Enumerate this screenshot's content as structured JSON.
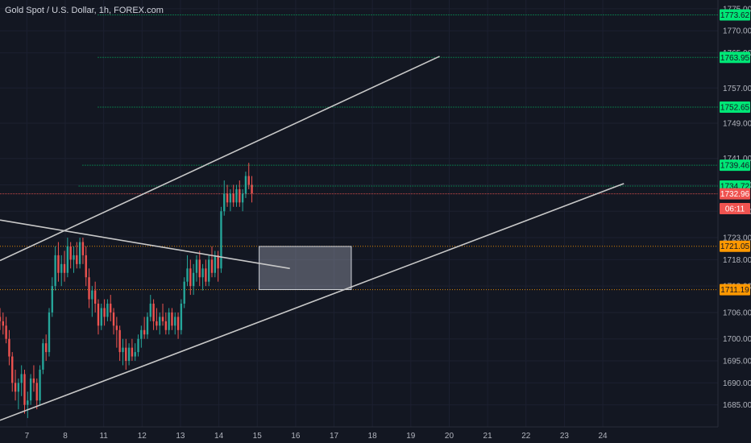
{
  "header": {
    "title": "Gold Spot / U.S. Dollar, 1h, FOREX.com"
  },
  "colors": {
    "background": "#131722",
    "up_candle": "#26a69a",
    "down_candle": "#ef5350",
    "green_level": "#00e676",
    "orange_level": "#ff9800",
    "current_price": "#ef5350",
    "trend_line": "#c8c8c8"
  },
  "chart_data": {
    "type": "candlestick",
    "title": "Gold Spot / U.S. Dollar, 1h, FOREX.com",
    "ylim": [
      1680,
      1777
    ],
    "xlim": [
      6.3,
      25.0
    ],
    "y_ticks": [
      "1685.00",
      "1690.00",
      "1695.00",
      "1700.00",
      "1706.00",
      "1712.00",
      "1718.00",
      "1723.00",
      "1729.00",
      "1735.00",
      "1741.00",
      "1749.00",
      "1757.00",
      "1765.00",
      "1770.00",
      "1775.00"
    ],
    "x_ticks": [
      {
        "label": "7",
        "x": 7
      },
      {
        "label": "8",
        "x": 8
      },
      {
        "label": "11",
        "x": 9
      },
      {
        "label": "12",
        "x": 10
      },
      {
        "label": "13",
        "x": 11
      },
      {
        "label": "14",
        "x": 12
      },
      {
        "label": "15",
        "x": 13
      },
      {
        "label": "16",
        "x": 14
      },
      {
        "label": "17",
        "x": 15
      },
      {
        "label": "18",
        "x": 16
      },
      {
        "label": "19",
        "x": 17
      },
      {
        "label": "20",
        "x": 18
      },
      {
        "label": "21",
        "x": 19
      },
      {
        "label": "22",
        "x": 20
      },
      {
        "label": "23",
        "x": 21
      },
      {
        "label": "24",
        "x": 22
      }
    ],
    "price_labels": [
      {
        "text": "1773.62",
        "price": 1773.62,
        "kind": "green"
      },
      {
        "text": "1763.95",
        "price": 1763.95,
        "kind": "green"
      },
      {
        "text": "1752.65",
        "price": 1752.65,
        "kind": "green"
      },
      {
        "text": "1739.46",
        "price": 1739.46,
        "kind": "green"
      },
      {
        "text": "1734.72",
        "price": 1734.72,
        "kind": "green"
      },
      {
        "text": "1732.96",
        "price": 1732.96,
        "kind": "current"
      },
      {
        "text": "06:11",
        "price": 1729.6,
        "kind": "timer"
      },
      {
        "text": "1721.05",
        "price": 1721.05,
        "kind": "orange"
      },
      {
        "text": "1711.19",
        "price": 1711.19,
        "kind": "orange"
      }
    ],
    "levels": [
      {
        "price": 1773.62,
        "x_start": 8.85,
        "kind": "green"
      },
      {
        "price": 1763.95,
        "x_start": 8.85,
        "kind": "green"
      },
      {
        "price": 1752.65,
        "x_start": 8.85,
        "kind": "green"
      },
      {
        "price": 1739.46,
        "x_start": 8.45,
        "kind": "green"
      },
      {
        "price": 1734.72,
        "x_start": 8.35,
        "kind": "green"
      },
      {
        "price": 1732.96,
        "x_start": 6.3,
        "kind": "current"
      },
      {
        "price": 1721.05,
        "x_start": 6.3,
        "kind": "orange"
      },
      {
        "price": 1711.19,
        "x_start": 6.3,
        "kind": "orange"
      }
    ],
    "trend_lines": [
      {
        "x1": 6.3,
        "y1": 1717.8,
        "x2": 17.75,
        "y2": 1764.2
      },
      {
        "x1": 6.3,
        "y1": 1681.5,
        "x2": 22.55,
        "y2": 1735.3
      },
      {
        "x1": 6.3,
        "y1": 1727.0,
        "x2": 13.85,
        "y2": 1716.0
      }
    ],
    "zones": [
      {
        "x1": 13.05,
        "x2": 15.45,
        "y1": 1711.2,
        "y2": 1721.0
      }
    ],
    "candles": [
      [
        6.3,
        1705,
        1707,
        1702,
        1704
      ],
      [
        6.38,
        1704,
        1706,
        1701,
        1703
      ],
      [
        6.46,
        1703,
        1705,
        1699,
        1700
      ],
      [
        6.54,
        1700,
        1702,
        1694,
        1696
      ],
      [
        6.62,
        1696,
        1697,
        1688,
        1690
      ],
      [
        6.7,
        1690,
        1693,
        1686,
        1688
      ],
      [
        6.78,
        1688,
        1691,
        1684,
        1690
      ],
      [
        6.86,
        1690,
        1694,
        1687,
        1692
      ],
      [
        6.94,
        1692,
        1693,
        1683,
        1685
      ],
      [
        7.02,
        1685,
        1688,
        1682,
        1686
      ],
      [
        7.1,
        1686,
        1692,
        1685,
        1691
      ],
      [
        7.18,
        1691,
        1694,
        1688,
        1690
      ],
      [
        7.26,
        1690,
        1691,
        1684,
        1686
      ],
      [
        7.34,
        1686,
        1694,
        1685,
        1693
      ],
      [
        7.42,
        1693,
        1700,
        1692,
        1699
      ],
      [
        7.5,
        1699,
        1701,
        1695,
        1697
      ],
      [
        7.58,
        1697,
        1707,
        1696,
        1706
      ],
      [
        7.66,
        1706,
        1714,
        1705,
        1712
      ],
      [
        7.74,
        1712,
        1721,
        1711,
        1719
      ],
      [
        7.82,
        1719,
        1722,
        1713,
        1715
      ],
      [
        7.9,
        1715,
        1719,
        1712,
        1717
      ],
      [
        7.98,
        1717,
        1720,
        1713,
        1715
      ],
      [
        8.06,
        1715,
        1723,
        1714,
        1721
      ],
      [
        8.14,
        1721,
        1722,
        1716,
        1718
      ],
      [
        8.22,
        1718,
        1721,
        1715,
        1719
      ],
      [
        8.3,
        1719,
        1722,
        1716,
        1717
      ],
      [
        8.38,
        1717,
        1723,
        1716,
        1722
      ],
      [
        8.46,
        1722,
        1723,
        1717,
        1719
      ],
      [
        8.54,
        1719,
        1721,
        1712,
        1714
      ],
      [
        8.62,
        1714,
        1716,
        1707,
        1709
      ],
      [
        8.7,
        1709,
        1712,
        1705,
        1711
      ],
      [
        8.78,
        1711,
        1713,
        1706,
        1708
      ],
      [
        8.86,
        1708,
        1709,
        1701,
        1703
      ],
      [
        8.94,
        1703,
        1708,
        1702,
        1707
      ],
      [
        9.02,
        1707,
        1709,
        1703,
        1705
      ],
      [
        9.1,
        1705,
        1709,
        1704,
        1708
      ],
      [
        9.18,
        1708,
        1710,
        1704,
        1706
      ],
      [
        9.26,
        1706,
        1707,
        1701,
        1703
      ],
      [
        9.34,
        1703,
        1705,
        1698,
        1702
      ],
      [
        9.42,
        1702,
        1703,
        1695,
        1697
      ],
      [
        9.5,
        1697,
        1700,
        1694,
        1698
      ],
      [
        9.58,
        1698,
        1700,
        1693,
        1695
      ],
      [
        9.66,
        1695,
        1699,
        1694,
        1698
      ],
      [
        9.74,
        1698,
        1700,
        1695,
        1696
      ],
      [
        9.82,
        1696,
        1699,
        1695,
        1697
      ],
      [
        9.9,
        1697,
        1701,
        1696,
        1700
      ],
      [
        9.98,
        1700,
        1703,
        1698,
        1702
      ],
      [
        10.06,
        1702,
        1705,
        1700,
        1701
      ],
      [
        10.14,
        1701,
        1706,
        1700,
        1705
      ],
      [
        10.22,
        1705,
        1710,
        1704,
        1708
      ],
      [
        10.3,
        1708,
        1709,
        1702,
        1704
      ],
      [
        10.38,
        1704,
        1707,
        1702,
        1703
      ],
      [
        10.46,
        1703,
        1706,
        1701,
        1705
      ],
      [
        10.54,
        1705,
        1708,
        1703,
        1704
      ],
      [
        10.62,
        1704,
        1706,
        1701,
        1702
      ],
      [
        10.7,
        1702,
        1707,
        1701,
        1706
      ],
      [
        10.78,
        1706,
        1707,
        1702,
        1703
      ],
      [
        10.86,
        1703,
        1706,
        1701,
        1705
      ],
      [
        10.94,
        1705,
        1706,
        1700,
        1702
      ],
      [
        11.02,
        1702,
        1709,
        1701,
        1708
      ],
      [
        11.1,
        1708,
        1714,
        1707,
        1713
      ],
      [
        11.18,
        1713,
        1719,
        1712,
        1716
      ],
      [
        11.26,
        1716,
        1718,
        1710,
        1712
      ],
      [
        11.34,
        1712,
        1717,
        1710,
        1715
      ],
      [
        11.42,
        1715,
        1719,
        1713,
        1718
      ],
      [
        11.5,
        1718,
        1720,
        1712,
        1714
      ],
      [
        11.58,
        1714,
        1717,
        1711,
        1716
      ],
      [
        11.66,
        1716,
        1718,
        1712,
        1713
      ],
      [
        11.74,
        1713,
        1719,
        1712,
        1718
      ],
      [
        11.82,
        1718,
        1721,
        1714,
        1715
      ],
      [
        11.9,
        1715,
        1720,
        1714,
        1719
      ],
      [
        11.98,
        1719,
        1720,
        1713,
        1716
      ],
      [
        12.06,
        1716,
        1730,
        1715,
        1729
      ],
      [
        12.14,
        1729,
        1736,
        1728,
        1733
      ],
      [
        12.22,
        1733,
        1735,
        1730,
        1731
      ],
      [
        12.3,
        1731,
        1734,
        1729,
        1733
      ],
      [
        12.38,
        1733,
        1735,
        1730,
        1731
      ],
      [
        12.46,
        1731,
        1735,
        1730,
        1734
      ],
      [
        12.54,
        1734,
        1736,
        1730,
        1731
      ],
      [
        12.62,
        1731,
        1734,
        1729,
        1733
      ],
      [
        12.7,
        1733,
        1738,
        1732,
        1737
      ],
      [
        12.78,
        1737,
        1740,
        1734,
        1735
      ],
      [
        12.86,
        1735,
        1737,
        1731,
        1733
      ]
    ]
  }
}
